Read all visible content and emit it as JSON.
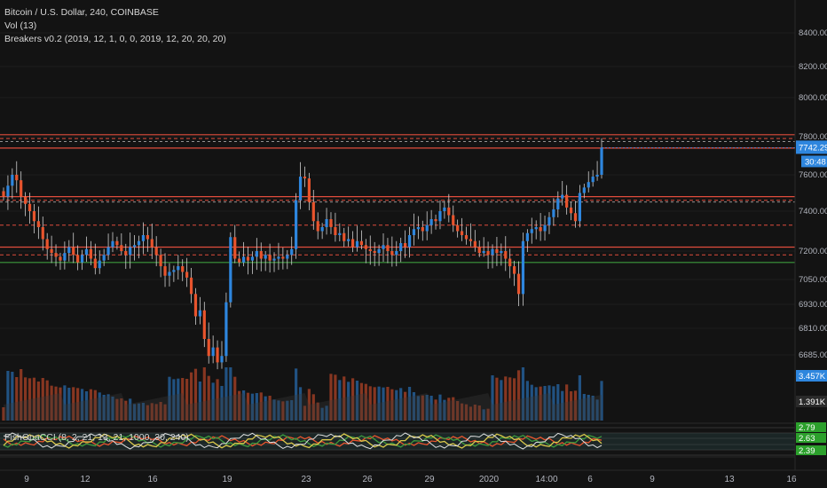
{
  "legend": {
    "line1": "Bitcoin / U.S. Dollar, 240, COINBASE",
    "line2": "Vol (13)",
    "line3": "Breakers v0.2 (2019, 12, 1, 0, 0, 2019, 12, 20, 20, 20)",
    "osc": "FishOnaCCI (8, 2, 21, 13, 21, 1000, 30, 240)"
  },
  "colors": {
    "background": "#131313",
    "up": "#2e86de",
    "down": "#e8542d",
    "level_line": "#e04c3c",
    "support_line": "#3d9a3d",
    "axis_text": "#b2b5be",
    "price_badge": "#2e86de"
  },
  "chart_data": {
    "type": "candlestick",
    "price_axis": {
      "ticks": [
        8400,
        8200,
        8000,
        7800,
        7600,
        7400,
        7200,
        7050,
        6930,
        6810,
        6685
      ],
      "tick_labels": [
        "8400.00",
        "8200.00",
        "8000.00",
        "7800.00",
        "7600.00",
        "7400.00",
        "7200.00",
        "7050.00",
        "6930.00",
        "6810.00",
        "6685.00"
      ],
      "last_price": "7742.29",
      "countdown": "30:48"
    },
    "volume_axis": {
      "badge_high": "3.457K",
      "badge_low": "1.391K"
    },
    "x_axis": {
      "labels": [
        "9",
        "12",
        "16",
        "19",
        "23",
        "26",
        "29",
        "2020",
        "14:00",
        "6",
        "9",
        "13",
        "16"
      ]
    },
    "levels": {
      "red_solid": [
        7810,
        7740,
        7480,
        7220
      ],
      "red_dashed": [
        7790,
        7460,
        7330,
        7180
      ],
      "green_solid": [
        7140
      ]
    },
    "candles_close": [
      7480,
      7540,
      7600,
      7570,
      7480,
      7440,
      7400,
      7350,
      7320,
      7260,
      7210,
      7190,
      7170,
      7150,
      7190,
      7220,
      7180,
      7140,
      7180,
      7210,
      7160,
      7110,
      7150,
      7180,
      7220,
      7250,
      7230,
      7200,
      7180,
      7220,
      7230,
      7250,
      7280,
      7260,
      7220,
      7180,
      7120,
      7070,
      7090,
      7100,
      7120,
      7090,
      7060,
      6980,
      6870,
      6900,
      6760,
      6680,
      6720,
      6650,
      6680,
      6940,
      7270,
      7160,
      7140,
      7170,
      7150,
      7170,
      7200,
      7160,
      7180,
      7150,
      7160,
      7170,
      7160,
      7180,
      7210,
      7460,
      7590,
      7580,
      7450,
      7350,
      7300,
      7320,
      7360,
      7320,
      7280,
      7290,
      7250,
      7260,
      7220,
      7250,
      7230,
      7210,
      7200,
      7190,
      7210,
      7230,
      7200,
      7180,
      7200,
      7240,
      7220,
      7280,
      7310,
      7320,
      7300,
      7330,
      7360,
      7350,
      7400,
      7420,
      7380,
      7330,
      7300,
      7280,
      7260,
      7250,
      7220,
      7190,
      7200,
      7180,
      7210,
      7190,
      7200,
      7160,
      7120,
      7080,
      6980,
      7250,
      7290,
      7310,
      7320,
      7300,
      7330,
      7370,
      7410,
      7470,
      7490,
      7420,
      7390,
      7350,
      7500,
      7530,
      7560,
      7590,
      7600,
      7742
    ],
    "oscillator": {
      "tick_labels": [
        "2.79",
        "2.63",
        "2.39"
      ]
    }
  }
}
